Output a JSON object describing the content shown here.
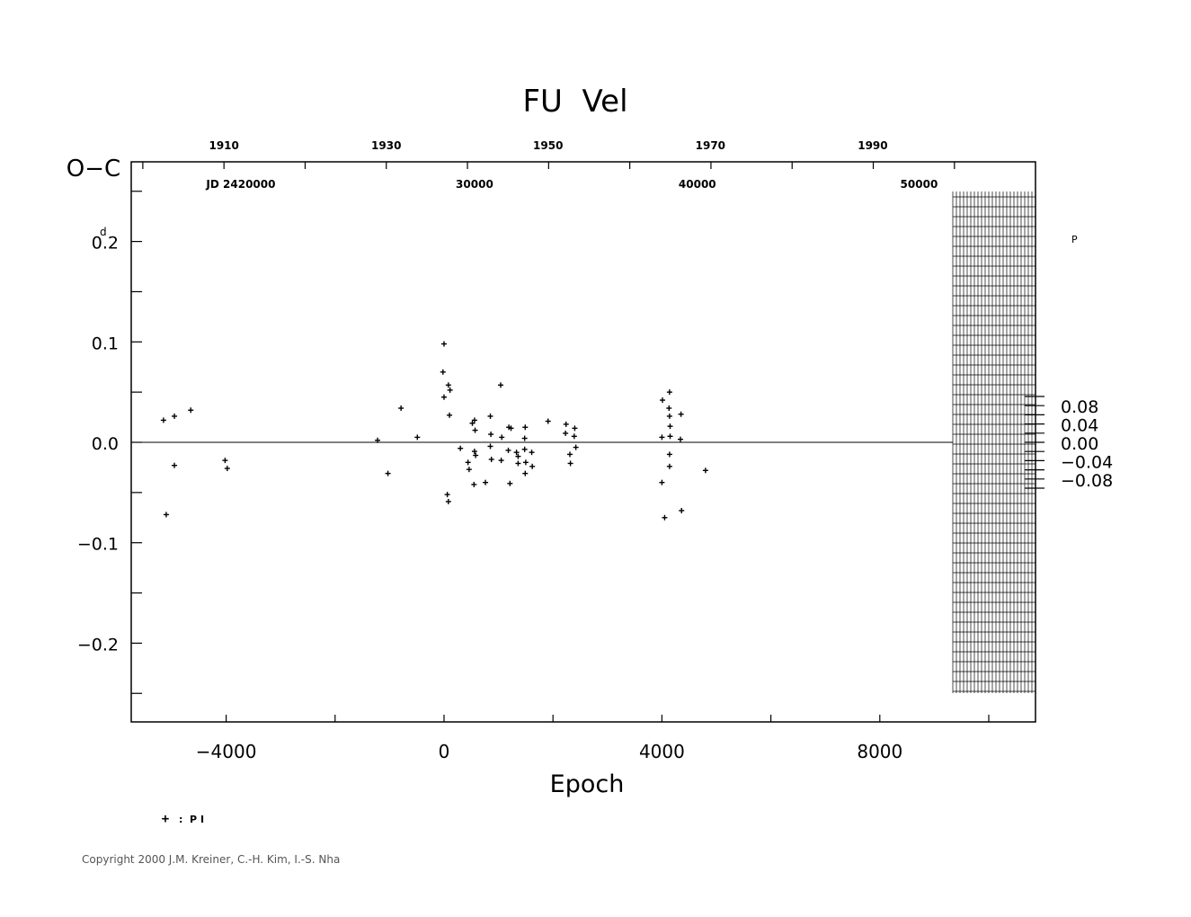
{
  "chart_data": {
    "type": "scatter",
    "title": "FU  Vel",
    "xlabel": "Epoch",
    "ylabel": "O−C",
    "y_unit_sup": "d",
    "y2_unit_sup": "P",
    "xlim": [
      -5700,
      10900
    ],
    "ylim": [
      -0.28,
      0.28
    ],
    "grid": false,
    "x_ticks": [
      -4000,
      0,
      4000,
      8000
    ],
    "x_tick_labels": [
      "−4000",
      "0",
      "4000",
      "8000"
    ],
    "y_ticks": [
      0.2,
      0.1,
      0.0,
      -0.1,
      -0.2
    ],
    "y_tick_labels": [
      "0.2",
      "0.1",
      "0.0",
      "−0.1",
      "−0.2"
    ],
    "y2_ticks": [
      0.08,
      0.04,
      0.0,
      -0.04,
      -0.08
    ],
    "y2_tick_labels": [
      "0.08",
      "0.04",
      "0.00",
      "−0.04",
      "−0.08"
    ],
    "top_year_ticks": [
      {
        "label": "1910",
        "epoch": -4040
      },
      {
        "label": "1930",
        "epoch": -1060
      },
      {
        "label": "1950",
        "epoch": 1910
      },
      {
        "label": "1970",
        "epoch": 4890
      },
      {
        "label": "1990",
        "epoch": 7870
      }
    ],
    "jd_labels": [
      {
        "label": "JD  2420000",
        "epoch": -3730
      },
      {
        "label": "30000",
        "epoch": 560
      },
      {
        "label": "40000",
        "epoch": 4650
      },
      {
        "label": "50000",
        "epoch": 8720
      }
    ],
    "legend": {
      "symbol": "+",
      "text": ":  P I"
    },
    "series": [
      {
        "points": [
          [
            -5150,
            0.022
          ],
          [
            -5100,
            -0.072
          ],
          [
            -4950,
            0.026
          ],
          [
            -4950,
            -0.023
          ],
          [
            -4650,
            0.032
          ],
          [
            -4020,
            -0.018
          ],
          [
            -3980,
            -0.026
          ],
          [
            -1220,
            0.002
          ],
          [
            -1030,
            -0.031
          ],
          [
            -790,
            0.034
          ],
          [
            -490,
            0.005
          ],
          [
            0,
            0.098
          ],
          [
            -20,
            0.07
          ],
          [
            0,
            0.045
          ],
          [
            80,
            0.057
          ],
          [
            110,
            0.052
          ],
          [
            100,
            0.027
          ],
          [
            60,
            -0.052
          ],
          [
            80,
            -0.059
          ],
          [
            300,
            -0.006
          ],
          [
            440,
            -0.02
          ],
          [
            460,
            -0.027
          ],
          [
            520,
            0.019
          ],
          [
            560,
            0.022
          ],
          [
            570,
            0.012
          ],
          [
            560,
            -0.009
          ],
          [
            580,
            -0.013
          ],
          [
            550,
            -0.042
          ],
          [
            760,
            -0.04
          ],
          [
            850,
            0.026
          ],
          [
            860,
            0.008
          ],
          [
            850,
            -0.004
          ],
          [
            870,
            -0.017
          ],
          [
            1040,
            0.057
          ],
          [
            1060,
            0.005
          ],
          [
            1050,
            -0.018
          ],
          [
            1190,
            0.015
          ],
          [
            1230,
            0.014
          ],
          [
            1180,
            -0.008
          ],
          [
            1210,
            -0.041
          ],
          [
            1330,
            -0.01
          ],
          [
            1360,
            -0.014
          ],
          [
            1360,
            -0.021
          ],
          [
            1490,
            0.015
          ],
          [
            1480,
            0.004
          ],
          [
            1480,
            -0.007
          ],
          [
            1500,
            -0.02
          ],
          [
            1490,
            -0.031
          ],
          [
            1610,
            -0.01
          ],
          [
            1620,
            -0.024
          ],
          [
            1910,
            0.021
          ],
          [
            2240,
            0.018
          ],
          [
            2230,
            0.009
          ],
          [
            2310,
            -0.012
          ],
          [
            2320,
            -0.021
          ],
          [
            2400,
            0.014
          ],
          [
            2390,
            0.006
          ],
          [
            2420,
            -0.005
          ],
          [
            4010,
            0.042
          ],
          [
            4000,
            0.005
          ],
          [
            4000,
            -0.04
          ],
          [
            4050,
            -0.075
          ],
          [
            4140,
            0.05
          ],
          [
            4130,
            0.034
          ],
          [
            4150,
            0.016
          ],
          [
            4140,
            0.026
          ],
          [
            4150,
            0.006
          ],
          [
            4140,
            -0.012
          ],
          [
            4140,
            -0.024
          ],
          [
            4350,
            0.028
          ],
          [
            4340,
            0.003
          ],
          [
            4360,
            -0.068
          ],
          [
            4800,
            -0.028
          ]
        ]
      }
    ]
  },
  "footer": {
    "copyright": "Copyright 2000 J.M. Kreiner, C.-H. Kim, I.-S. Nha"
  }
}
